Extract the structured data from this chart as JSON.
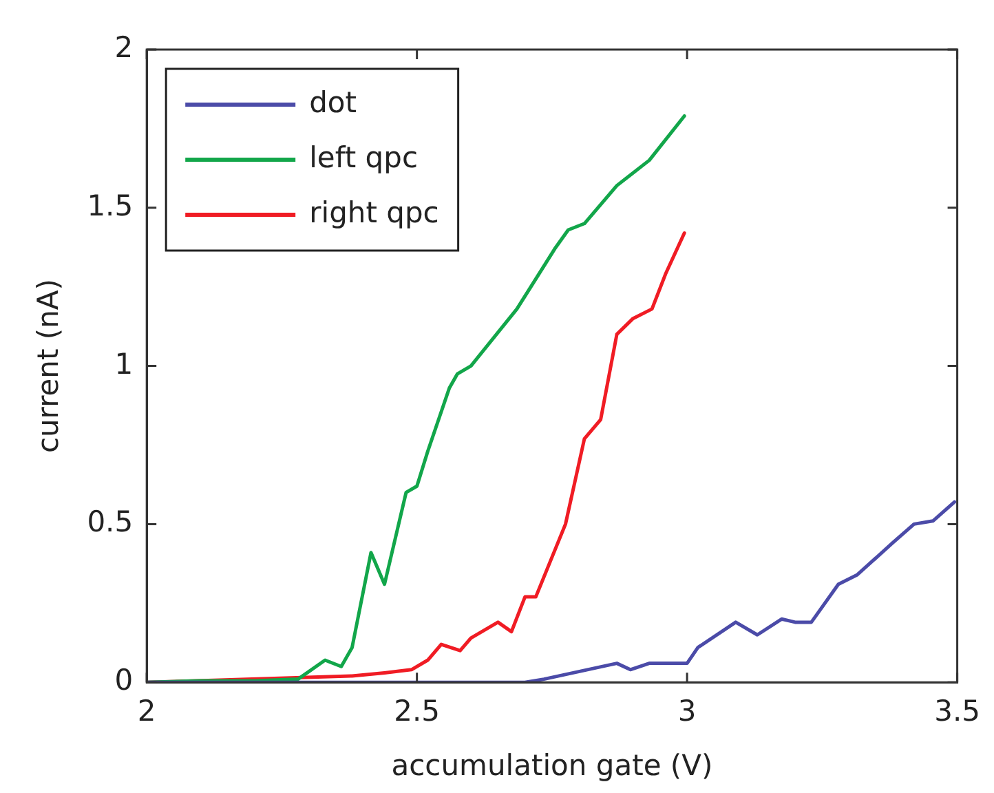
{
  "chart_data": {
    "type": "line",
    "xlabel": "accumulation gate (V)",
    "ylabel": "current (nA)",
    "xlim": [
      2,
      3.5
    ],
    "xticks": [
      2,
      2.5,
      3,
      3.5
    ],
    "ylim": [
      0,
      2
    ],
    "yticks": [
      0,
      0.5,
      1,
      1.5,
      2
    ],
    "grid": false,
    "legend": "top left",
    "marker": "none",
    "line_style": "solid",
    "series": [
      {
        "name": "dot",
        "color": "#4b4ba8",
        "x": [
          2,
          2.5,
          2.7,
          2.735,
          2.87,
          2.895,
          2.93,
          2.99,
          3.0,
          3.02,
          3.09,
          3.13,
          3.175,
          3.2,
          3.23,
          3.28,
          3.315,
          3.38,
          3.42,
          3.455,
          3.495
        ],
        "values": [
          0,
          0,
          0,
          0.01,
          0.06,
          0.04,
          0.06,
          0.06,
          0.06,
          0.11,
          0.19,
          0.15,
          0.2,
          0.19,
          0.19,
          0.31,
          0.34,
          0.44,
          0.5,
          0.51,
          0.57
        ]
      },
      {
        "name": "left qpc",
        "color": "#12a64a",
        "x": [
          2,
          2.1,
          2.2,
          2.28,
          2.33,
          2.36,
          2.38,
          2.415,
          2.44,
          2.48,
          2.5,
          2.52,
          2.56,
          2.575,
          2.6,
          2.685,
          2.755,
          2.78,
          2.81,
          2.87,
          2.93,
          2.995
        ],
        "values": [
          0,
          0.005,
          0.005,
          0.01,
          0.07,
          0.05,
          0.11,
          0.41,
          0.31,
          0.6,
          0.62,
          0.73,
          0.93,
          0.975,
          1.0,
          1.18,
          1.37,
          1.43,
          1.45,
          1.57,
          1.65,
          1.79
        ]
      },
      {
        "name": "right qpc",
        "color": "#f01c24",
        "x": [
          2,
          2.38,
          2.44,
          2.49,
          2.52,
          2.545,
          2.58,
          2.6,
          2.65,
          2.675,
          2.7,
          2.72,
          2.775,
          2.81,
          2.84,
          2.87,
          2.9,
          2.935,
          2.96,
          2.995
        ],
        "values": [
          0,
          0.02,
          0.03,
          0.04,
          0.07,
          0.12,
          0.1,
          0.14,
          0.19,
          0.16,
          0.27,
          0.27,
          0.5,
          0.77,
          0.83,
          1.1,
          1.15,
          1.18,
          1.29,
          1.42
        ]
      }
    ]
  }
}
